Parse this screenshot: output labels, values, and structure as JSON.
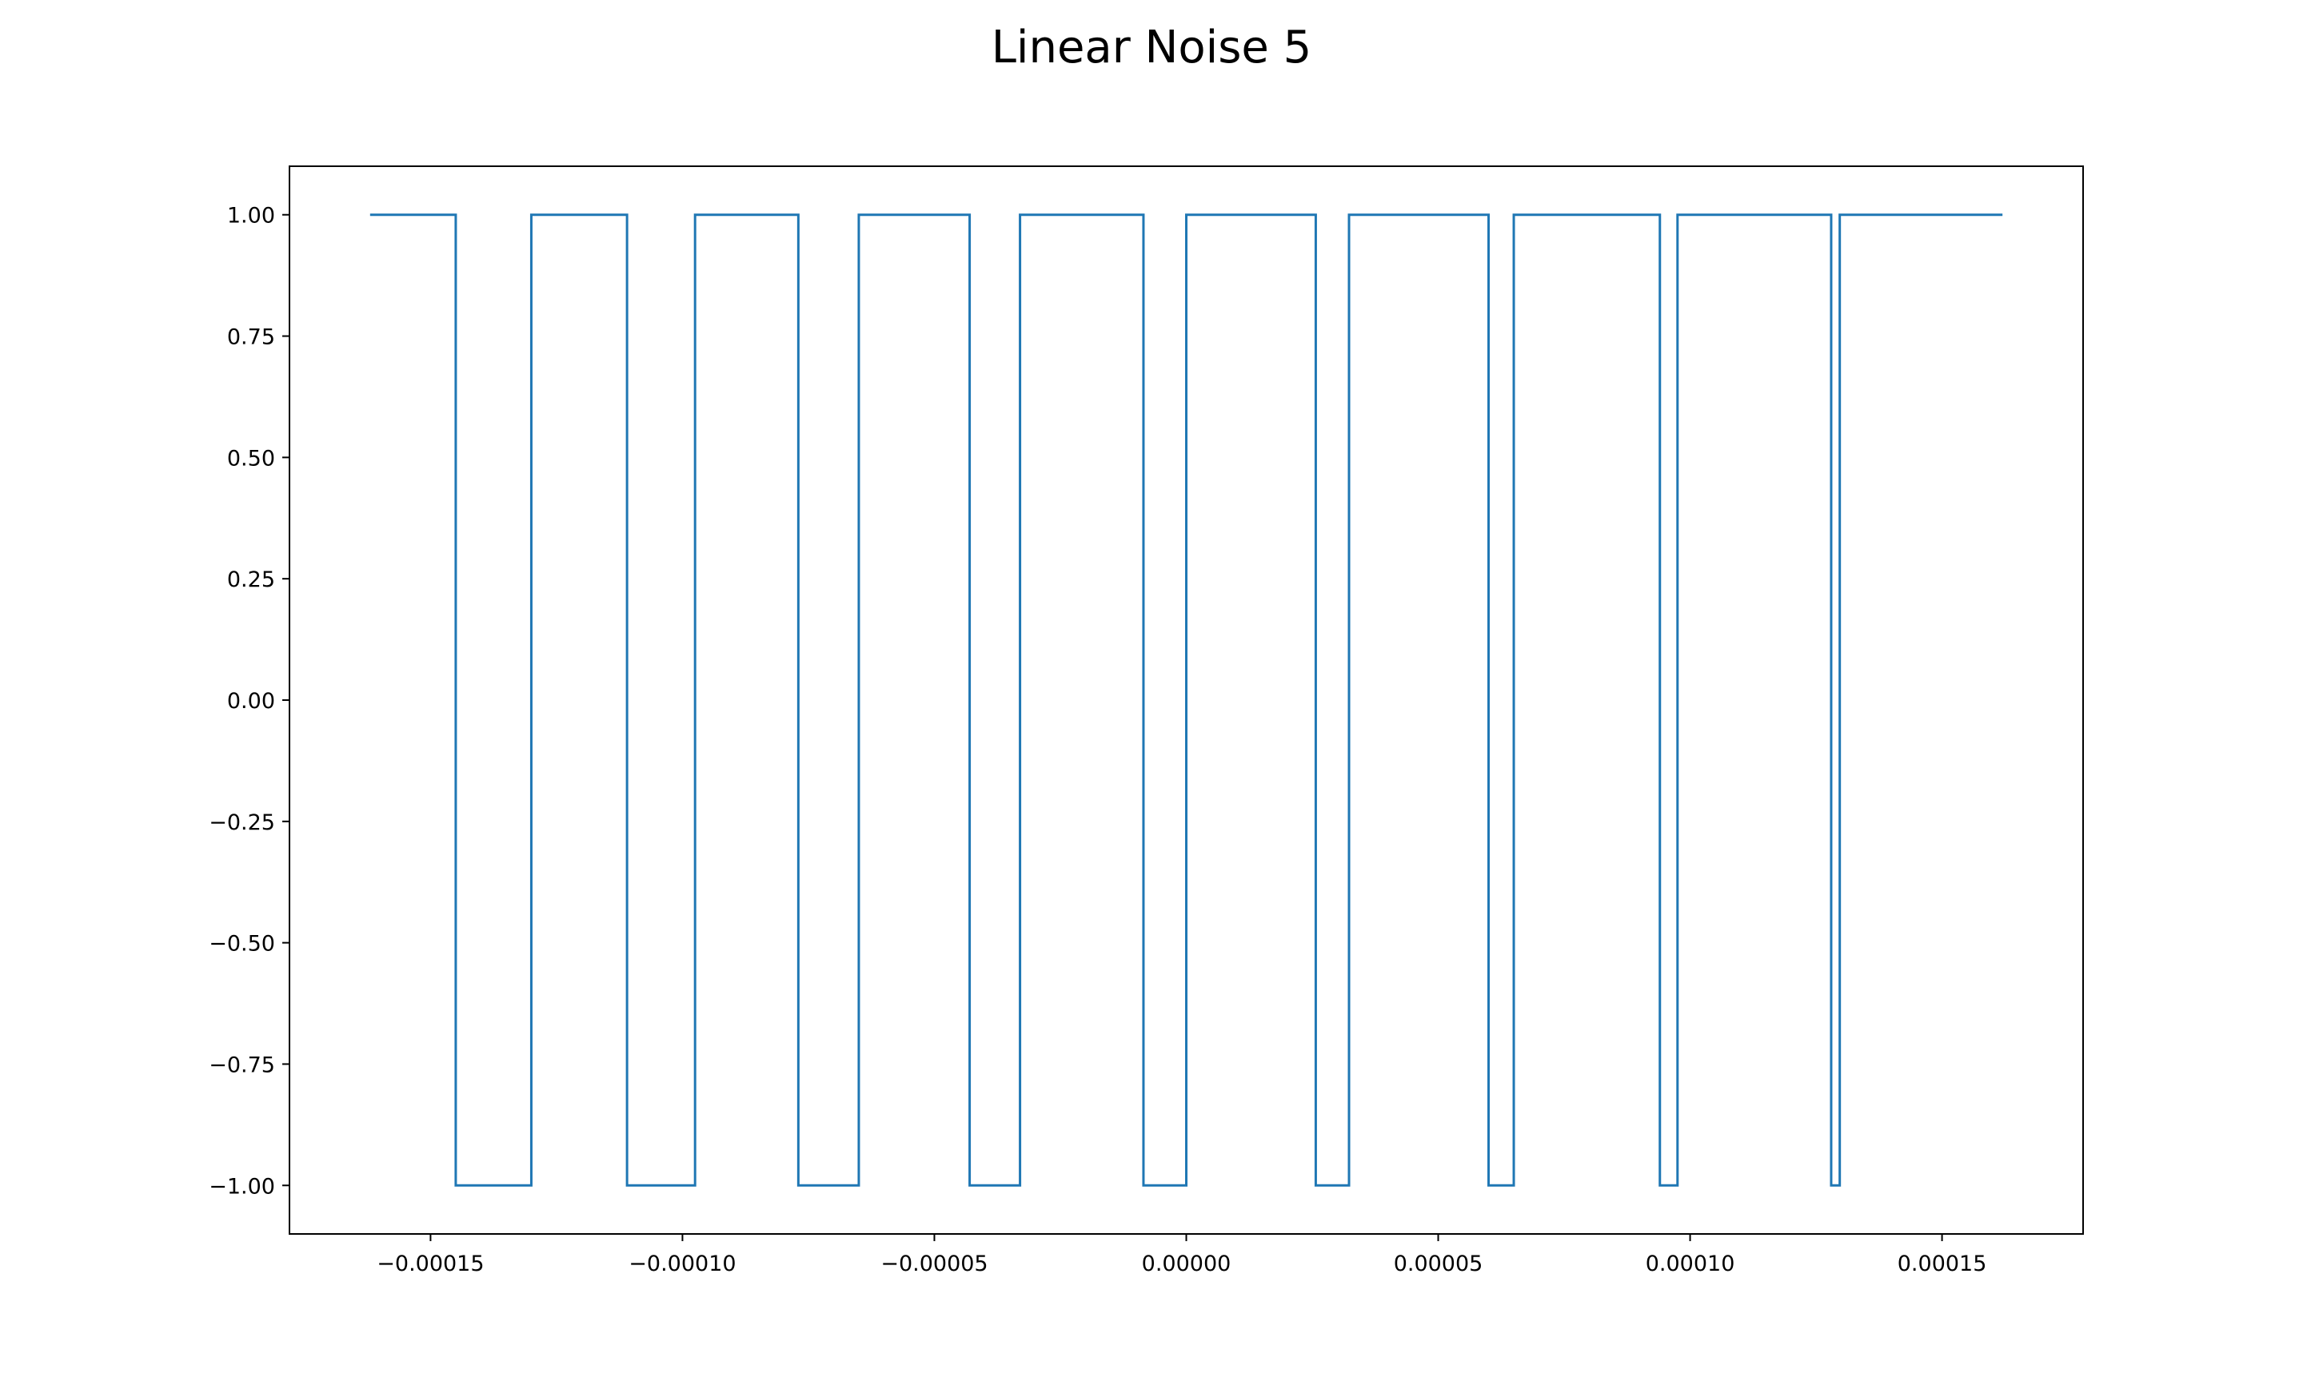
{
  "chart_data": {
    "type": "line",
    "title": "Linear Noise 5",
    "xlabel": "",
    "ylabel": "",
    "xlim": [
      -0.000178,
      0.000178
    ],
    "ylim": [
      -1.1,
      1.1
    ],
    "xticks": [
      -0.00015,
      -0.0001,
      -5e-05,
      0,
      5e-05,
      0.0001,
      0.00015
    ],
    "xtick_labels": [
      "−0.00015",
      "−0.00010",
      "−0.00005",
      "0.00000",
      "0.00005",
      "0.00010",
      "0.00015"
    ],
    "yticks": [
      1,
      0.75,
      0.5,
      0.25,
      0,
      -0.25,
      -0.5,
      -0.75,
      -1
    ],
    "ytick_labels": [
      "1.00",
      "0.75",
      "0.50",
      "0.25",
      "0.00",
      "−0.25",
      "−0.50",
      "−0.75",
      "−1.00"
    ],
    "grid": false,
    "series": [
      {
        "color": "#1f77b4",
        "x_start": -0.000162,
        "x_end": 0.000162,
        "y_initial": 1,
        "transitions": [
          {
            "x": -0.000145,
            "y": -1
          },
          {
            "x": -0.00013,
            "y": 1
          },
          {
            "x": -0.000111,
            "y": -1
          },
          {
            "x": -9.75e-05,
            "y": 1
          },
          {
            "x": -7.7e-05,
            "y": -1
          },
          {
            "x": -6.5e-05,
            "y": 1
          },
          {
            "x": -4.3e-05,
            "y": -1
          },
          {
            "x": -3.3e-05,
            "y": 1
          },
          {
            "x": -8.5e-06,
            "y": -1
          },
          {
            "x": 0.0,
            "y": 1
          },
          {
            "x": 2.57e-05,
            "y": -1
          },
          {
            "x": 3.23e-05,
            "y": 1
          },
          {
            "x": 6e-05,
            "y": -1
          },
          {
            "x": 6.5e-05,
            "y": 1
          },
          {
            "x": 9.4e-05,
            "y": -1
          },
          {
            "x": 9.75e-05,
            "y": 1
          },
          {
            "x": 0.000128,
            "y": -1
          },
          {
            "x": 0.0001297,
            "y": 1
          }
        ]
      }
    ]
  }
}
